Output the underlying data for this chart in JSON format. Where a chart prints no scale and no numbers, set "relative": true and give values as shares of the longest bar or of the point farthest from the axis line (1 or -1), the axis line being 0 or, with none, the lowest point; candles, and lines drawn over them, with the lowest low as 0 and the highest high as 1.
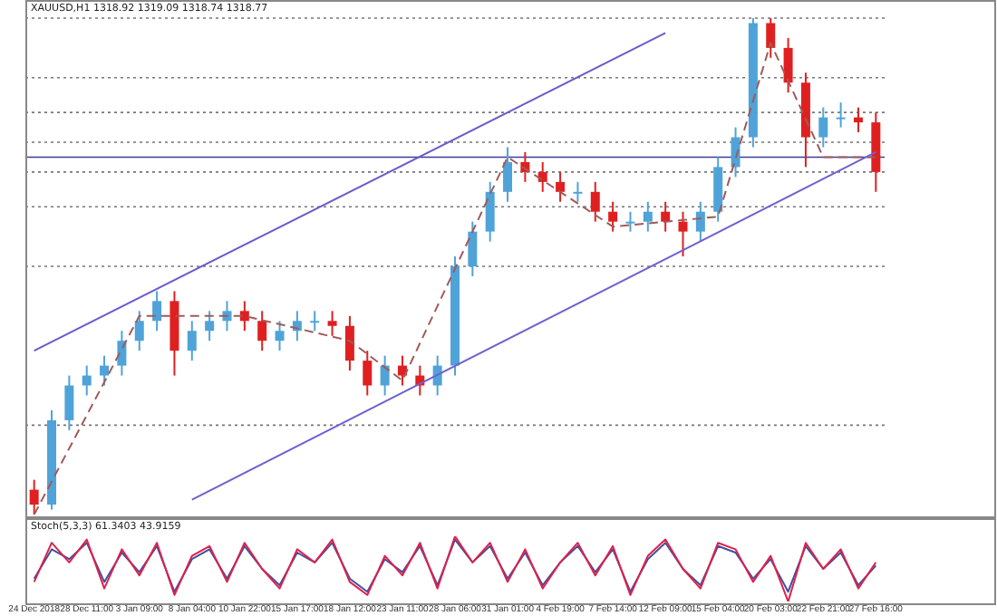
{
  "chart_data": [
    {
      "type": "candlestick",
      "title": "XAUUSD,H1 1318.92 1319.09 1318.74 1318.77",
      "relative": true,
      "tick_labels": false,
      "legend": false,
      "grid": false,
      "categories": [
        "24 Dec 2018",
        null,
        null,
        "28 Dec 11:00",
        null,
        null,
        "3 Jan 09:00",
        null,
        null,
        "8 Jan 04:00",
        null,
        null,
        "10 Jan 22:00",
        null,
        null,
        "15 Jan 17:00",
        null,
        null,
        "18 Jan 12:00",
        null,
        null,
        "23 Jan 11:00",
        null,
        null,
        "28 Jan 06:00",
        null,
        null,
        "31 Jan 01:00",
        null,
        null,
        "4 Feb 19:00",
        null,
        null,
        "7 Feb 14:00",
        null,
        null,
        "12 Feb 09:00",
        null,
        null,
        "15 Feb 04:00",
        null,
        null,
        "20 Feb 03:00",
        null,
        null,
        "22 Feb 21:00",
        null,
        null,
        "27 Feb 16:00"
      ],
      "ohlc": [
        [
          0.05,
          0.07,
          0,
          0.02
        ],
        [
          0.02,
          0.21,
          0.01,
          0.19
        ],
        [
          0.19,
          0.28,
          0.17,
          0.26
        ],
        [
          0.26,
          0.3,
          0.24,
          0.28
        ],
        [
          0.28,
          0.32,
          0.26,
          0.3
        ],
        [
          0.3,
          0.37,
          0.28,
          0.35
        ],
        [
          0.35,
          0.41,
          0.33,
          0.39
        ],
        [
          0.39,
          0.45,
          0.37,
          0.43
        ],
        [
          0.43,
          0.45,
          0.28,
          0.33
        ],
        [
          0.33,
          0.39,
          0.31,
          0.37
        ],
        [
          0.37,
          0.41,
          0.35,
          0.39
        ],
        [
          0.39,
          0.43,
          0.37,
          0.41
        ],
        [
          0.41,
          0.43,
          0.37,
          0.39
        ],
        [
          0.39,
          0.41,
          0.33,
          0.35
        ],
        [
          0.35,
          0.39,
          0.33,
          0.37
        ],
        [
          0.37,
          0.41,
          0.35,
          0.39
        ],
        [
          0.39,
          0.41,
          0.37,
          0.39
        ],
        [
          0.39,
          0.41,
          0.36,
          0.38
        ],
        [
          0.38,
          0.4,
          0.29,
          0.31
        ],
        [
          0.31,
          0.33,
          0.24,
          0.26
        ],
        [
          0.26,
          0.32,
          0.24,
          0.3
        ],
        [
          0.3,
          0.32,
          0.26,
          0.28
        ],
        [
          0.28,
          0.3,
          0.24,
          0.26
        ],
        [
          0.26,
          0.32,
          0.24,
          0.3
        ],
        [
          0.3,
          0.52,
          0.28,
          0.5
        ],
        [
          0.5,
          0.59,
          0.48,
          0.57
        ],
        [
          0.57,
          0.67,
          0.55,
          0.65
        ],
        [
          0.65,
          0.74,
          0.63,
          0.71
        ],
        [
          0.71,
          0.73,
          0.67,
          0.69
        ],
        [
          0.69,
          0.71,
          0.65,
          0.67
        ],
        [
          0.67,
          0.69,
          0.63,
          0.65
        ],
        [
          0.65,
          0.67,
          0.63,
          0.65
        ],
        [
          0.65,
          0.67,
          0.59,
          0.61
        ],
        [
          0.61,
          0.63,
          0.57,
          0.59
        ],
        [
          0.59,
          0.61,
          0.57,
          0.59
        ],
        [
          0.59,
          0.63,
          0.57,
          0.61
        ],
        [
          0.61,
          0.63,
          0.57,
          0.59
        ],
        [
          0.59,
          0.61,
          0.52,
          0.57
        ],
        [
          0.57,
          0.63,
          0.55,
          0.61
        ],
        [
          0.61,
          0.72,
          0.59,
          0.7
        ],
        [
          0.7,
          0.78,
          0.68,
          0.76
        ],
        [
          0.76,
          1,
          0.74,
          0.99
        ],
        [
          0.99,
          1,
          0.92,
          0.94
        ],
        [
          0.94,
          0.96,
          0.85,
          0.87
        ],
        [
          0.87,
          0.89,
          0.7,
          0.76
        ],
        [
          0.76,
          0.82,
          0.74,
          0.8
        ],
        [
          0.8,
          0.83,
          0.78,
          0.8
        ],
        [
          0.8,
          0.82,
          0.77,
          0.79
        ],
        [
          0.79,
          0.81,
          0.65,
          0.69
        ]
      ],
      "series": [
        {
          "type": "line",
          "color": "#6a5acd",
          "x": [
            "24 Dec 2018",
            "12 Feb 09:00"
          ],
          "values": [
            0.33,
            0.97
          ]
        },
        {
          "type": "line",
          "color": "#7060d0",
          "x": [
            "8 Jan 04:00",
            "27 Feb 16:00"
          ],
          "values": [
            0.03,
            0.73
          ]
        },
        {
          "type": "line",
          "color": "#a05a5a",
          "line_style": "dashed",
          "x": [
            "24 Dec 2018",
            "3 Jan 09:00",
            "10 Jan 22:00",
            "18 Jan 12:00",
            "23 Jan 11:00",
            "31 Jan 01:00",
            "7 Feb 14:00",
            "15 Feb 04:00",
            "20 Feb 03:00",
            "22 Feb 21:00",
            "27 Feb 16:00"
          ],
          "values": [
            0,
            0.4,
            0.4,
            0.35,
            0.27,
            0.72,
            0.58,
            0.6,
            0.95,
            0.72,
            0.72
          ]
        }
      ],
      "ref_lines": [
        {
          "axis": "y",
          "value": 1,
          "color": "#777777",
          "line_style": "dotted"
        },
        {
          "axis": "y",
          "value": 0.88,
          "color": "#777777",
          "line_style": "dotted"
        },
        {
          "axis": "y",
          "value": 0.81,
          "color": "#777777",
          "line_style": "dotted"
        },
        {
          "axis": "y",
          "value": 0.75,
          "color": "#777777",
          "line_style": "dotted"
        },
        {
          "axis": "y",
          "value": 0.72,
          "color": "#3c3c96",
          "line_style": "solid"
        },
        {
          "axis": "y",
          "value": 0.69,
          "color": "#777777",
          "line_style": "dotted"
        },
        {
          "axis": "y",
          "value": 0.62,
          "color": "#777777",
          "line_style": "dotted"
        },
        {
          "axis": "y",
          "value": 0.5,
          "color": "#777777",
          "line_style": "dotted"
        },
        {
          "axis": "y",
          "value": 0.18,
          "color": "#777777",
          "line_style": "dotted"
        }
      ]
    },
    {
      "type": "line",
      "title": "Stoch(5,3,3) 61.3403 43.9159",
      "relative": true,
      "legend": false,
      "grid": false,
      "categories": [
        "24 Dec 2018",
        null,
        null,
        "28 Dec 11:00",
        null,
        null,
        "3 Jan 09:00",
        null,
        null,
        "8 Jan 04:00",
        null,
        null,
        "10 Jan 22:00",
        null,
        null,
        "15 Jan 17:00",
        null,
        null,
        "18 Jan 12:00",
        null,
        null,
        "23 Jan 11:00",
        null,
        null,
        "28 Jan 06:00",
        null,
        null,
        "31 Jan 01:00",
        null,
        null,
        "4 Feb 19:00",
        null,
        null,
        "7 Feb 14:00",
        null,
        null,
        "12 Feb 09:00",
        null,
        null,
        "15 Feb 04:00",
        null,
        null,
        "20 Feb 03:00",
        null,
        null,
        "22 Feb 21:00",
        null,
        null,
        "27 Feb 16:00"
      ],
      "series": [
        {
          "color": "#e0204a",
          "values": [
            0.3,
            0.9,
            0.6,
            0.95,
            0.2,
            0.8,
            0.4,
            0.9,
            0.1,
            0.7,
            0.85,
            0.3,
            0.9,
            0.5,
            0.2,
            0.8,
            0.6,
            0.95,
            0.3,
            0.1,
            0.7,
            0.4,
            0.9,
            0.2,
            1,
            0.6,
            0.9,
            0.3,
            0.8,
            0.2,
            0.6,
            0.9,
            0.4,
            0.85,
            0.1,
            0.7,
            0.95,
            0.5,
            0.2,
            0.9,
            0.8,
            0.3,
            0.7,
            0,
            0.9,
            0.5,
            0.8,
            0.2,
            0.6
          ]
        },
        {
          "color": "#4050a0",
          "values": [
            0.35,
            0.8,
            0.65,
            0.9,
            0.3,
            0.75,
            0.45,
            0.85,
            0.15,
            0.65,
            0.8,
            0.35,
            0.85,
            0.5,
            0.25,
            0.75,
            0.6,
            0.9,
            0.35,
            0.15,
            0.65,
            0.45,
            0.85,
            0.25,
            0.95,
            0.6,
            0.85,
            0.35,
            0.75,
            0.25,
            0.6,
            0.85,
            0.45,
            0.8,
            0.15,
            0.65,
            0.9,
            0.5,
            0.25,
            0.85,
            0.75,
            0.35,
            0.65,
            0.15,
            0.85,
            0.5,
            0.75,
            0.25,
            0.55
          ]
        }
      ]
    }
  ]
}
